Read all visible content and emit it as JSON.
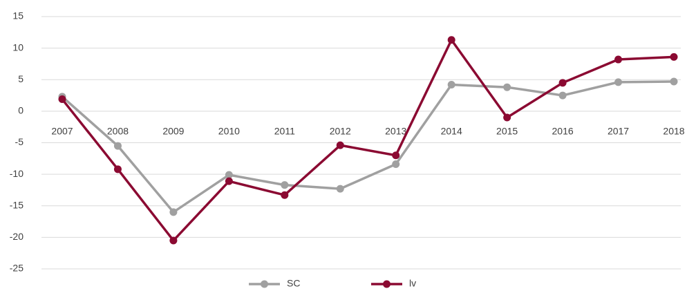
{
  "chart_data": {
    "type": "line",
    "categories": [
      "2007",
      "2008",
      "2009",
      "2010",
      "2011",
      "2012",
      "2013",
      "2014",
      "2015",
      "2016",
      "2017",
      "2018"
    ],
    "series": [
      {
        "name": "SC",
        "color": "#a0a0a0",
        "values": [
          2.3,
          -5.5,
          -16.0,
          -10.1,
          -11.7,
          -12.3,
          -8.4,
          4.2,
          3.8,
          2.5,
          4.6,
          4.7
        ]
      },
      {
        "name": "lv",
        "color": "#8b0a32",
        "values": [
          1.9,
          -9.2,
          -20.5,
          -11.1,
          -13.3,
          -5.4,
          -7.0,
          11.3,
          -1.0,
          4.5,
          8.2,
          8.6
        ]
      }
    ],
    "ylim": [
      -25,
      15
    ],
    "yticks": [
      -25,
      -20,
      -15,
      -10,
      -5,
      0,
      5,
      10,
      15
    ],
    "grid": true,
    "legend": "bottom"
  }
}
